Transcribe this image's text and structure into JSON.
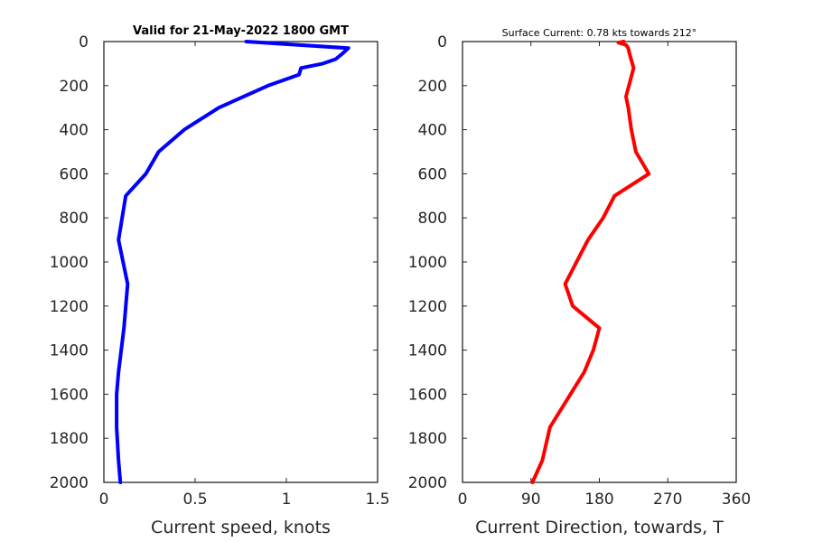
{
  "chart_data": [
    {
      "type": "line",
      "title": "Valid for 21-May-2022 1800 GMT",
      "xlabel": "Current speed, knots",
      "ylabel": "",
      "xlim": [
        0,
        1.5
      ],
      "ylim": [
        0,
        2000
      ],
      "y_reversed": true,
      "grid": false,
      "x_ticks": [
        0,
        0.5,
        1,
        1.5
      ],
      "x_tick_labels": [
        "0",
        "0.5",
        "1",
        "1.5"
      ],
      "y_ticks": [
        0,
        200,
        400,
        600,
        800,
        1000,
        1200,
        1400,
        1600,
        1800,
        2000
      ],
      "y_tick_labels": [
        "0",
        "200",
        "400",
        "600",
        "800",
        "1000",
        "1200",
        "1400",
        "1600",
        "1800",
        "2000"
      ],
      "series": [
        {
          "color": "#0000ff",
          "x": [
            0.78,
            1.34,
            1.3,
            1.27,
            1.2,
            1.08,
            1.07,
            0.9,
            0.63,
            0.44,
            0.3,
            0.23,
            0.12,
            0.1,
            0.08,
            0.13,
            0.11,
            0.08,
            0.07,
            0.07,
            0.08,
            0.09
          ],
          "y": [
            0,
            30,
            60,
            80,
            100,
            120,
            150,
            200,
            300,
            400,
            500,
            600,
            700,
            800,
            900,
            1100,
            1300,
            1500,
            1600,
            1750,
            1900,
            2000
          ]
        }
      ]
    },
    {
      "type": "line",
      "title": "Surface Current: 0.78 kts towards 212°",
      "xlabel": "Current Direction, towards, T",
      "ylabel": "",
      "xlim": [
        0,
        360
      ],
      "ylim": [
        0,
        2000
      ],
      "y_reversed": true,
      "grid": false,
      "x_ticks": [
        0,
        90,
        180,
        270,
        360
      ],
      "x_tick_labels": [
        "0",
        "90",
        "180",
        "270",
        "360"
      ],
      "y_ticks": [
        0,
        200,
        400,
        600,
        800,
        1000,
        1200,
        1400,
        1600,
        1800,
        2000
      ],
      "y_tick_labels": [
        "0",
        "200",
        "400",
        "600",
        "800",
        "1000",
        "1200",
        "1400",
        "1600",
        "1800",
        "2000"
      ],
      "series": [
        {
          "color": "#ff0000",
          "x": [
            212,
            205,
            215,
            218,
            220,
            225,
            215,
            218,
            220,
            222,
            228,
            245,
            200,
            185,
            165,
            135,
            145,
            180,
            172,
            160,
            115,
            105,
            92
          ],
          "y": [
            0,
            5,
            15,
            30,
            60,
            120,
            250,
            300,
            350,
            400,
            500,
            600,
            700,
            800,
            900,
            1100,
            1200,
            1300,
            1400,
            1500,
            1750,
            1900,
            2000
          ]
        }
      ]
    }
  ]
}
